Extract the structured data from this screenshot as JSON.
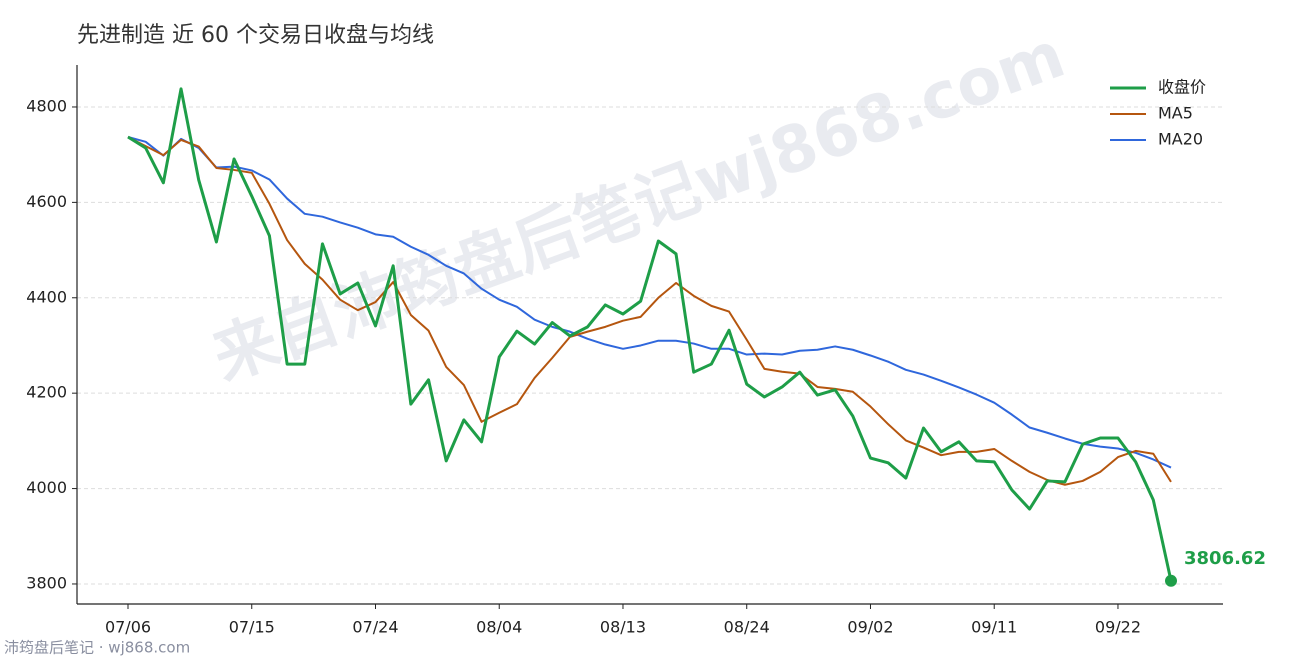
{
  "chart_data": {
    "type": "line",
    "title": "先进制造 近 60 个交易日收盘与均线",
    "watermark": "来自沛筠盘后笔记wj868.com",
    "footer": "沛筠盘后笔记 · wj868.com",
    "categories": [
      "07/06",
      null,
      null,
      null,
      null,
      null,
      null,
      "07/15",
      null,
      null,
      null,
      null,
      null,
      null,
      "07/24",
      null,
      null,
      null,
      null,
      null,
      null,
      "08/04",
      null,
      null,
      null,
      null,
      null,
      null,
      "08/13",
      null,
      null,
      null,
      null,
      null,
      null,
      "08/24",
      null,
      null,
      null,
      null,
      null,
      null,
      "09/02",
      null,
      null,
      null,
      null,
      null,
      null,
      "09/11",
      null,
      null,
      null,
      null,
      null,
      null,
      "09/22",
      null,
      null,
      null
    ],
    "series": [
      {
        "name": "收盘价",
        "color": "#1e9e48",
        "values": [
          4737,
          4714,
          4641,
          4838,
          4647,
          4517,
          4691,
          4613,
          4530,
          4261,
          4261,
          4513,
          4408,
          4431,
          4341,
          4467,
          4177,
          4228,
          4058,
          4144,
          4098,
          4276,
          4330,
          4303,
          4348,
          4320,
          4339,
          4385,
          4366,
          4393,
          4519,
          4492,
          4244,
          4261,
          4332,
          4219,
          4192,
          4213,
          4244,
          4196,
          4207,
          4152,
          4064,
          4054,
          4022,
          4127,
          4077,
          4098,
          4058,
          4056,
          3997,
          3957,
          4016,
          4014,
          4093,
          4106,
          4106,
          4056,
          3976,
          3806.62
        ]
      },
      {
        "name": "MA5",
        "color": "#b5560f",
        "values": [
          4737,
          4718,
          4699,
          4731,
          4717,
          4672,
          4668,
          4662,
          4597,
          4521,
          4471,
          4438,
          4396,
          4374,
          4391,
          4433,
          4364,
          4331,
          4255,
          4217,
          4140,
          4159,
          4177,
          4232,
          4274,
          4318,
          4329,
          4339,
          4352,
          4360,
          4400,
          4431,
          4404,
          4383,
          4371,
          4312,
          4251,
          4245,
          4241,
          4213,
          4209,
          4203,
          4172,
          4135,
          4101,
          4086,
          4070,
          4077,
          4077,
          4083,
          4058,
          4035,
          4018,
          4008,
          4016,
          4035,
          4066,
          4079,
          4073,
          4014
        ]
      },
      {
        "name": "MA20",
        "color": "#2f67dc",
        "values": [
          4737,
          4727,
          4698,
          4733,
          4714,
          4673,
          4675,
          4667,
          4648,
          4608,
          4576,
          4570,
          4558,
          4547,
          4533,
          4528,
          4507,
          4490,
          4467,
          4451,
          4419,
          4396,
          4381,
          4354,
          4339,
          4329,
          4314,
          4302,
          4293,
          4300,
          4310,
          4310,
          4304,
          4293,
          4293,
          4281,
          4283,
          4281,
          4289,
          4291,
          4298,
          4291,
          4279,
          4266,
          4249,
          4239,
          4226,
          4212,
          4197,
          4180,
          4155,
          4128,
          4117,
          4105,
          4094,
          4088,
          4084,
          4075,
          4061,
          4044
        ]
      }
    ],
    "ylim": [
      3758,
      4888
    ],
    "yticks": [
      3800,
      4000,
      4200,
      4400,
      4600,
      4800
    ],
    "grid": true,
    "legend": "upper right"
  }
}
